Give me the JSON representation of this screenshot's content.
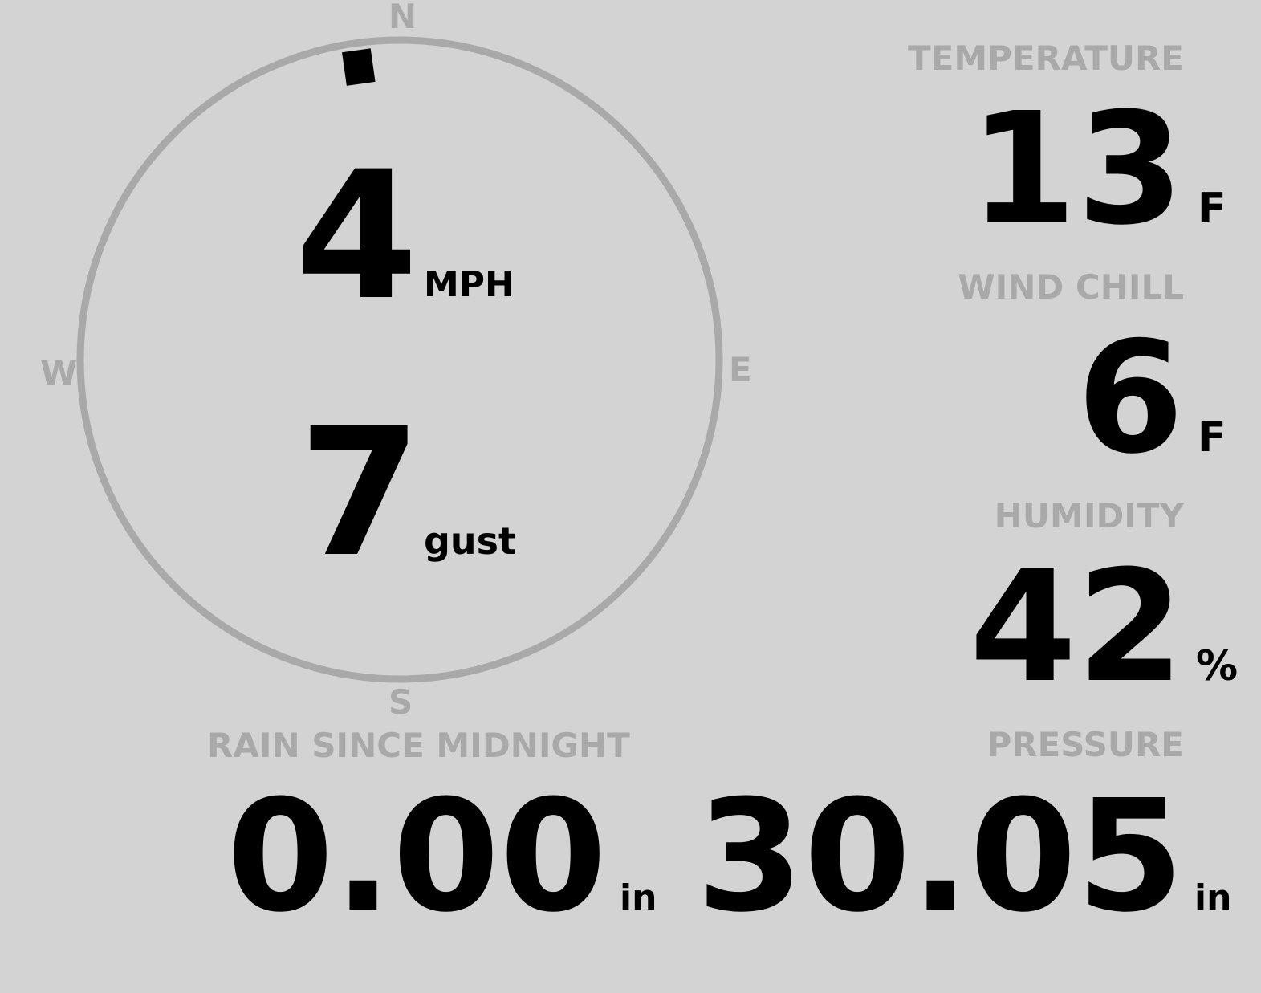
{
  "colors": {
    "background": "#d3d3d3",
    "label": "#a9a9a9",
    "value": "#000000"
  },
  "wind": {
    "compass": {
      "north": "N",
      "east": "E",
      "south": "S",
      "west": "W"
    },
    "direction_degrees": 352,
    "speed": "4",
    "speed_unit": "MPH",
    "gust": "7",
    "gust_unit": "gust"
  },
  "temperature": {
    "label": "TEMPERATURE",
    "value": "13",
    "unit": "F"
  },
  "wind_chill": {
    "label": "WIND CHILL",
    "value": "6",
    "unit": "F"
  },
  "humidity": {
    "label": "HUMIDITY",
    "value": "42",
    "unit": "%"
  },
  "rain": {
    "label": "RAIN SINCE MIDNIGHT",
    "value": "0.00",
    "unit": "in"
  },
  "pressure": {
    "label": "PRESSURE",
    "value": "30.05",
    "unit": "in"
  }
}
